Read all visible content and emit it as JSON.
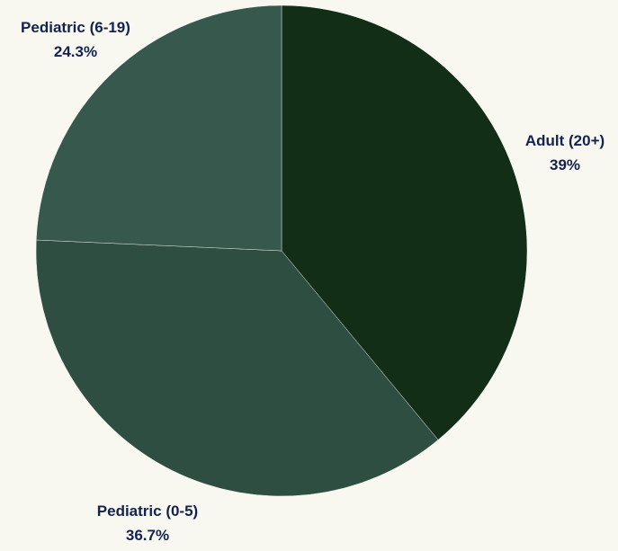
{
  "chart_data": {
    "type": "pie",
    "title": "",
    "slices": [
      {
        "label": "Adult (20+)",
        "value": 39.0,
        "display": "39%",
        "color": "#132e17"
      },
      {
        "label": "Pediatric (0-5)",
        "value": 36.7,
        "display": "36.7%",
        "color": "#2e4e41"
      },
      {
        "label": "Pediatric (6-19)",
        "value": 24.3,
        "display": "24.3%",
        "color": "#36584d"
      }
    ],
    "start": "12 o'clock",
    "direction": "clockwise",
    "label_color": "#13234f",
    "background": "#f8f7f0"
  }
}
